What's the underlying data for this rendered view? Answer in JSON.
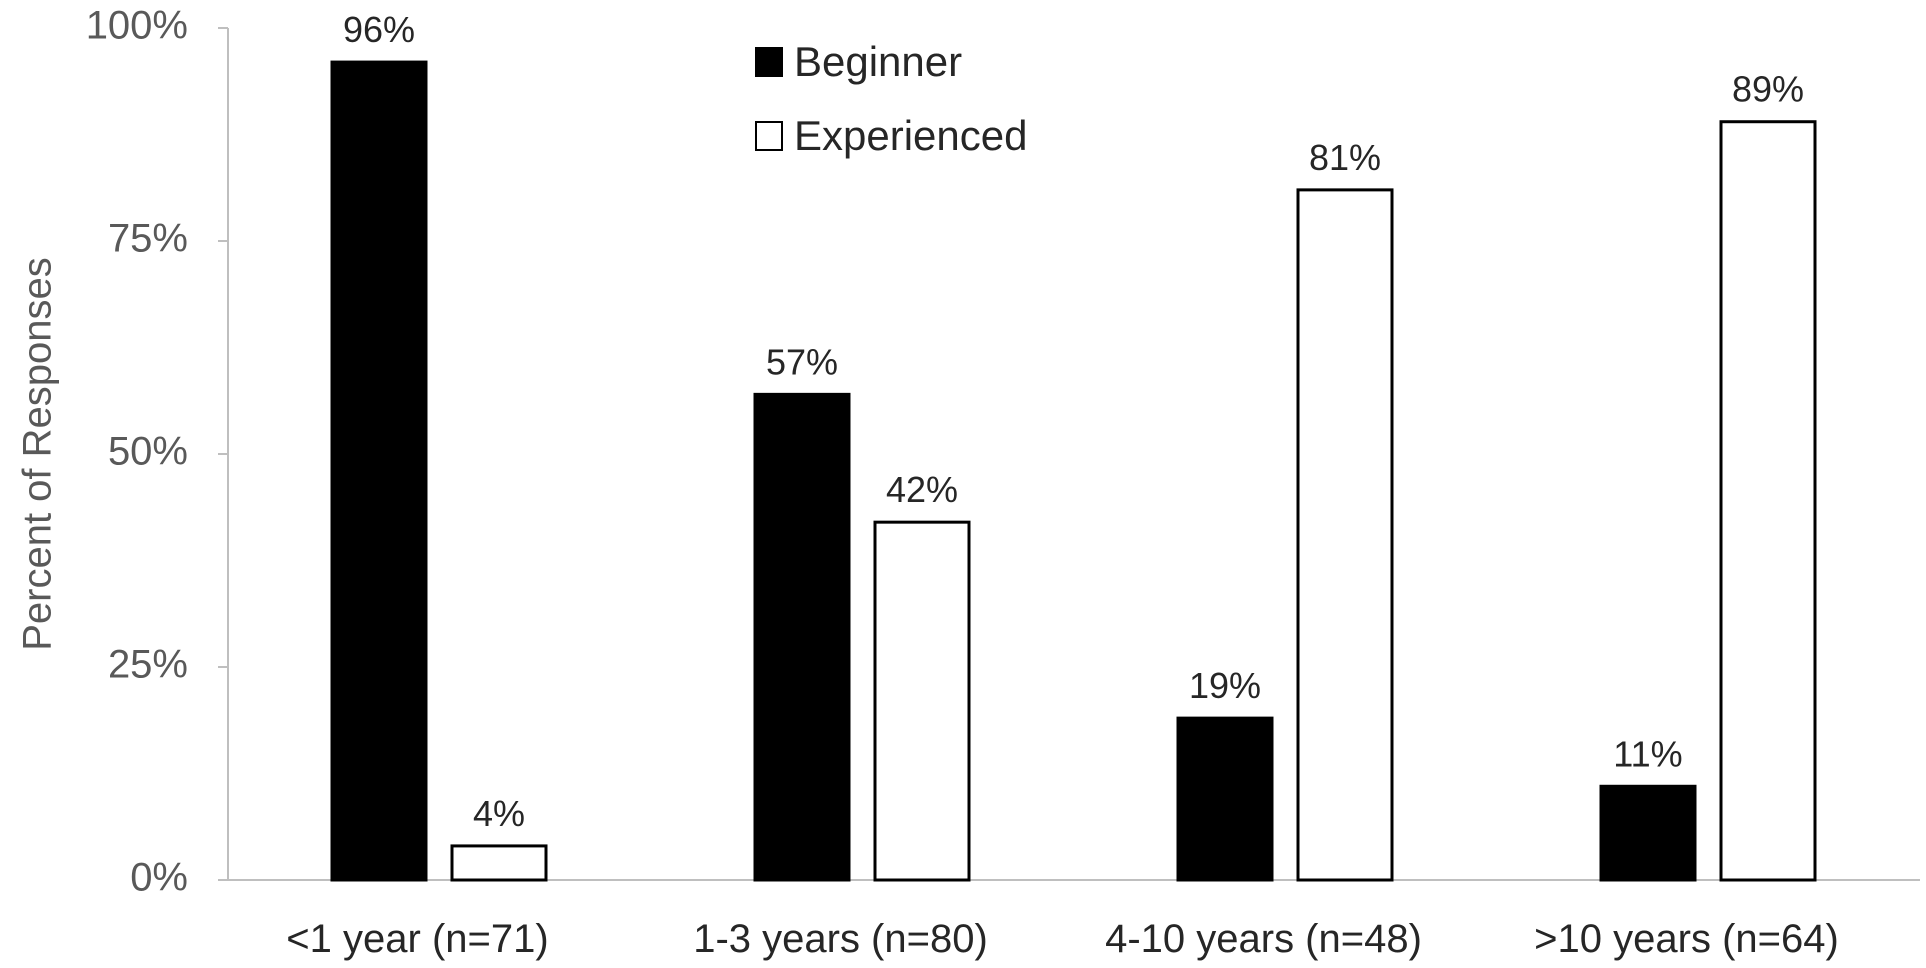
{
  "chart_data": {
    "type": "bar",
    "categories": [
      "<1 year (n=71)",
      "1-3 years (n=80)",
      "4-10 years (n=48)",
      ">10 years (n=64)"
    ],
    "series": [
      {
        "name": "Beginner",
        "values": [
          96,
          57,
          19,
          11
        ],
        "color": "#000000",
        "labels": [
          "96%",
          "57%",
          "19%",
          "11%"
        ]
      },
      {
        "name": "Experienced",
        "values": [
          4,
          42,
          81,
          89
        ],
        "color": "#ffffff",
        "labels": [
          "4%",
          "42%",
          "81%",
          "89%"
        ]
      }
    ],
    "title": "",
    "xlabel": "",
    "ylabel": "Percent of Responses",
    "ylim": [
      0,
      100
    ],
    "yticks": [
      0,
      25,
      50,
      75,
      100
    ],
    "ytick_labels": [
      "0%",
      "25%",
      "50%",
      "75%",
      "100%"
    ],
    "grid": false,
    "legend_position": "top-center"
  }
}
